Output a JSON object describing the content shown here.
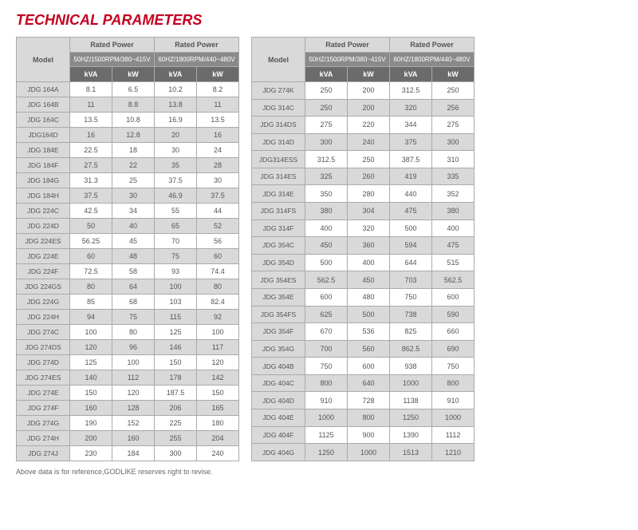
{
  "title": "TECHNICAL PARAMETERS",
  "footnote": "Above data is for reference,GODLIKE reserves right to revise.",
  "header": {
    "model": "Model",
    "ratedPower": "Rated Power",
    "spec50": "50HZ/1500RPM/380~415V",
    "spec60": "60HZ/1800RPM/440~480V",
    "kva": "kVA",
    "kw": "kW"
  },
  "table1": [
    {
      "m": "JDG 164A",
      "a": "8.1",
      "b": "6.5",
      "c": "10.2",
      "d": "8.2"
    },
    {
      "m": "JDG 164B",
      "a": "11",
      "b": "8.8",
      "c": "13.8",
      "d": "11"
    },
    {
      "m": "JDG 164C",
      "a": "13.5",
      "b": "10.8",
      "c": "16.9",
      "d": "13.5"
    },
    {
      "m": "JDG164D",
      "a": "16",
      "b": "12.8",
      "c": "20",
      "d": "16"
    },
    {
      "m": "JDG 184E",
      "a": "22.5",
      "b": "18",
      "c": "30",
      "d": "24"
    },
    {
      "m": "JDG 184F",
      "a": "27.5",
      "b": "22",
      "c": "35",
      "d": "28"
    },
    {
      "m": "JDG 184G",
      "a": "31.3",
      "b": "25",
      "c": "37.5",
      "d": "30"
    },
    {
      "m": "JDG 184H",
      "a": "37.5",
      "b": "30",
      "c": "46.9",
      "d": "37.5"
    },
    {
      "m": "JDG 224C",
      "a": "42.5",
      "b": "34",
      "c": "55",
      "d": "44"
    },
    {
      "m": "JDG 224D",
      "a": "50",
      "b": "40",
      "c": "65",
      "d": "52"
    },
    {
      "m": "JDG 224ES",
      "a": "56.25",
      "b": "45",
      "c": "70",
      "d": "56"
    },
    {
      "m": "JDG 224E",
      "a": "60",
      "b": "48",
      "c": "75",
      "d": "60"
    },
    {
      "m": "JDG 224F",
      "a": "72.5",
      "b": "58",
      "c": "93",
      "d": "74.4"
    },
    {
      "m": "JDG 224GS",
      "a": "80",
      "b": "64",
      "c": "100",
      "d": "80"
    },
    {
      "m": "JDG 224G",
      "a": "85",
      "b": "68",
      "c": "103",
      "d": "82.4"
    },
    {
      "m": "JDG 224H",
      "a": "94",
      "b": "75",
      "c": "115",
      "d": "92"
    },
    {
      "m": "JDG 274C",
      "a": "100",
      "b": "80",
      "c": "125",
      "d": "100"
    },
    {
      "m": "JDG 274DS",
      "a": "120",
      "b": "96",
      "c": "146",
      "d": "117"
    },
    {
      "m": "JDG 274D",
      "a": "125",
      "b": "100",
      "c": "150",
      "d": "120"
    },
    {
      "m": "JDG 274ES",
      "a": "140",
      "b": "112",
      "c": "178",
      "d": "142"
    },
    {
      "m": "JDG 274E",
      "a": "150",
      "b": "120",
      "c": "187.5",
      "d": "150"
    },
    {
      "m": "JDG 274F",
      "a": "160",
      "b": "128",
      "c": "206",
      "d": "165"
    },
    {
      "m": "JDG 274G",
      "a": "190",
      "b": "152",
      "c": "225",
      "d": "180"
    },
    {
      "m": "JDG 274H",
      "a": "200",
      "b": "160",
      "c": "255",
      "d": "204"
    },
    {
      "m": "JDG 274J",
      "a": "230",
      "b": "184",
      "c": "300",
      "d": "240"
    }
  ],
  "table2": [
    {
      "m": "JDG 274K",
      "a": "250",
      "b": "200",
      "c": "312.5",
      "d": "250"
    },
    {
      "m": "JDG 314C",
      "a": "250",
      "b": "200",
      "c": "320",
      "d": "256"
    },
    {
      "m": "JDG 314DS",
      "a": "275",
      "b": "220",
      "c": "344",
      "d": "275"
    },
    {
      "m": "JDG 314D",
      "a": "300",
      "b": "240",
      "c": "375",
      "d": "300"
    },
    {
      "m": "JDG314ESS",
      "a": "312.5",
      "b": "250",
      "c": "387.5",
      "d": "310"
    },
    {
      "m": "JDG 314ES",
      "a": "325",
      "b": "260",
      "c": "419",
      "d": "335"
    },
    {
      "m": "JDG 314E",
      "a": "350",
      "b": "280",
      "c": "440",
      "d": "352"
    },
    {
      "m": "JDG 314FS",
      "a": "380",
      "b": "304",
      "c": "475",
      "d": "380"
    },
    {
      "m": "JDG 314F",
      "a": "400",
      "b": "320",
      "c": "500",
      "d": "400"
    },
    {
      "m": "JDG 354C",
      "a": "450",
      "b": "360",
      "c": "594",
      "d": "475"
    },
    {
      "m": "JDG 354D",
      "a": "500",
      "b": "400",
      "c": "644",
      "d": "515"
    },
    {
      "m": "JDG 354ES",
      "a": "562.5",
      "b": "450",
      "c": "703",
      "d": "562.5"
    },
    {
      "m": "JDG 354E",
      "a": "600",
      "b": "480",
      "c": "750",
      "d": "600"
    },
    {
      "m": "JDG 354FS",
      "a": "625",
      "b": "500",
      "c": "738",
      "d": "590"
    },
    {
      "m": "JDG 354F",
      "a": "670",
      "b": "536",
      "c": "825",
      "d": "660"
    },
    {
      "m": "JDG 354G",
      "a": "700",
      "b": "560",
      "c": "862.5",
      "d": "690"
    },
    {
      "m": "JDG 404B",
      "a": "750",
      "b": "600",
      "c": "938",
      "d": "750"
    },
    {
      "m": "JDG 404C",
      "a": "800",
      "b": "640",
      "c": "1000",
      "d": "800"
    },
    {
      "m": "JDG 404D",
      "a": "910",
      "b": "728",
      "c": "1138",
      "d": "910"
    },
    {
      "m": "JDG 404E",
      "a": "1000",
      "b": "800",
      "c": "1250",
      "d": "1000"
    },
    {
      "m": "JDG 404F",
      "a": "1125",
      "b": "900",
      "c": "1390",
      "d": "1112"
    },
    {
      "m": "JDG 404G",
      "a": "1250",
      "b": "1000",
      "c": "1513",
      "d": "1210"
    }
  ]
}
